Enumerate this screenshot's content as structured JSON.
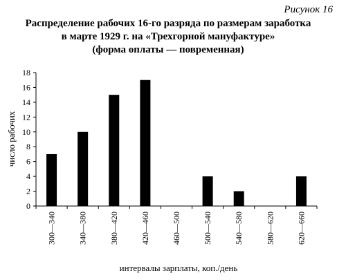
{
  "figure_label": "Рисунок 16",
  "chart_data": {
    "type": "bar",
    "title": [
      "Распределение рабочих 16-го разряда по размерам заработка",
      "в  марте  1929 г.  на  «Трехгорной  мануфактуре»",
      "(форма оплаты — повременная)"
    ],
    "xlabel": "интервалы зарплаты, коп./день",
    "ylabel": "число рабочих",
    "categories": [
      "300—340",
      "340—380",
      "380—420",
      "420—460",
      "460—500",
      "500—540",
      "540—580",
      "580—620",
      "620—660"
    ],
    "values": [
      7,
      10,
      15,
      17,
      0,
      4,
      2,
      0,
      4
    ],
    "ylim": [
      0,
      18
    ],
    "yticks": [
      0,
      2,
      4,
      6,
      8,
      10,
      12,
      14,
      16,
      18
    ],
    "grid": false,
    "bar_color": "#000000"
  }
}
